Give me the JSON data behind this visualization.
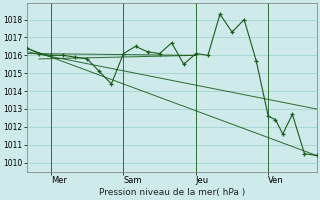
{
  "background_color": "#ceeaea",
  "grid_color": "#9ecece",
  "line_color": "#1a5c1a",
  "ylabel_text": "Pression niveau de la mer( hPa )",
  "x_tick_labels": [
    "Mer",
    "Sam",
    "Jeu",
    "Ven"
  ],
  "ylim": [
    1009.5,
    1018.9
  ],
  "yticks": [
    1010,
    1011,
    1012,
    1013,
    1014,
    1015,
    1016,
    1017,
    1018
  ],
  "xlim": [
    0,
    12
  ],
  "x_vlines": [
    1.0,
    4.0,
    7.0,
    10.0
  ],
  "x_tick_positions": [
    1.0,
    4.0,
    7.0,
    10.0
  ],
  "main_series_x": [
    0.0,
    0.5,
    1.0,
    1.5,
    2.0,
    2.5,
    3.0,
    3.5,
    4.0,
    4.5,
    5.0,
    5.5,
    6.0,
    6.5,
    7.0,
    7.5,
    8.0,
    8.5,
    9.0,
    9.5,
    10.0,
    10.3,
    10.6,
    11.0,
    11.5,
    12.0
  ],
  "main_series_y": [
    1016.4,
    1016.1,
    1016.0,
    1016.0,
    1015.9,
    1015.8,
    1015.1,
    1014.4,
    1016.1,
    1016.5,
    1016.2,
    1016.1,
    1016.7,
    1015.5,
    1016.1,
    1016.0,
    1018.3,
    1017.3,
    1018.0,
    1015.7,
    1012.6,
    1012.4,
    1011.6,
    1012.7,
    1010.5,
    1010.4
  ],
  "extra_lines": [
    {
      "x": [
        0.0,
        12.0
      ],
      "y": [
        1016.4,
        1010.4
      ]
    },
    {
      "x": [
        0.0,
        12.0
      ],
      "y": [
        1016.2,
        1013.0
      ]
    },
    {
      "x": [
        0.0,
        7.0
      ],
      "y": [
        1016.1,
        1016.0
      ]
    },
    {
      "x": [
        0.5,
        7.0
      ],
      "y": [
        1015.8,
        1016.0
      ]
    }
  ]
}
